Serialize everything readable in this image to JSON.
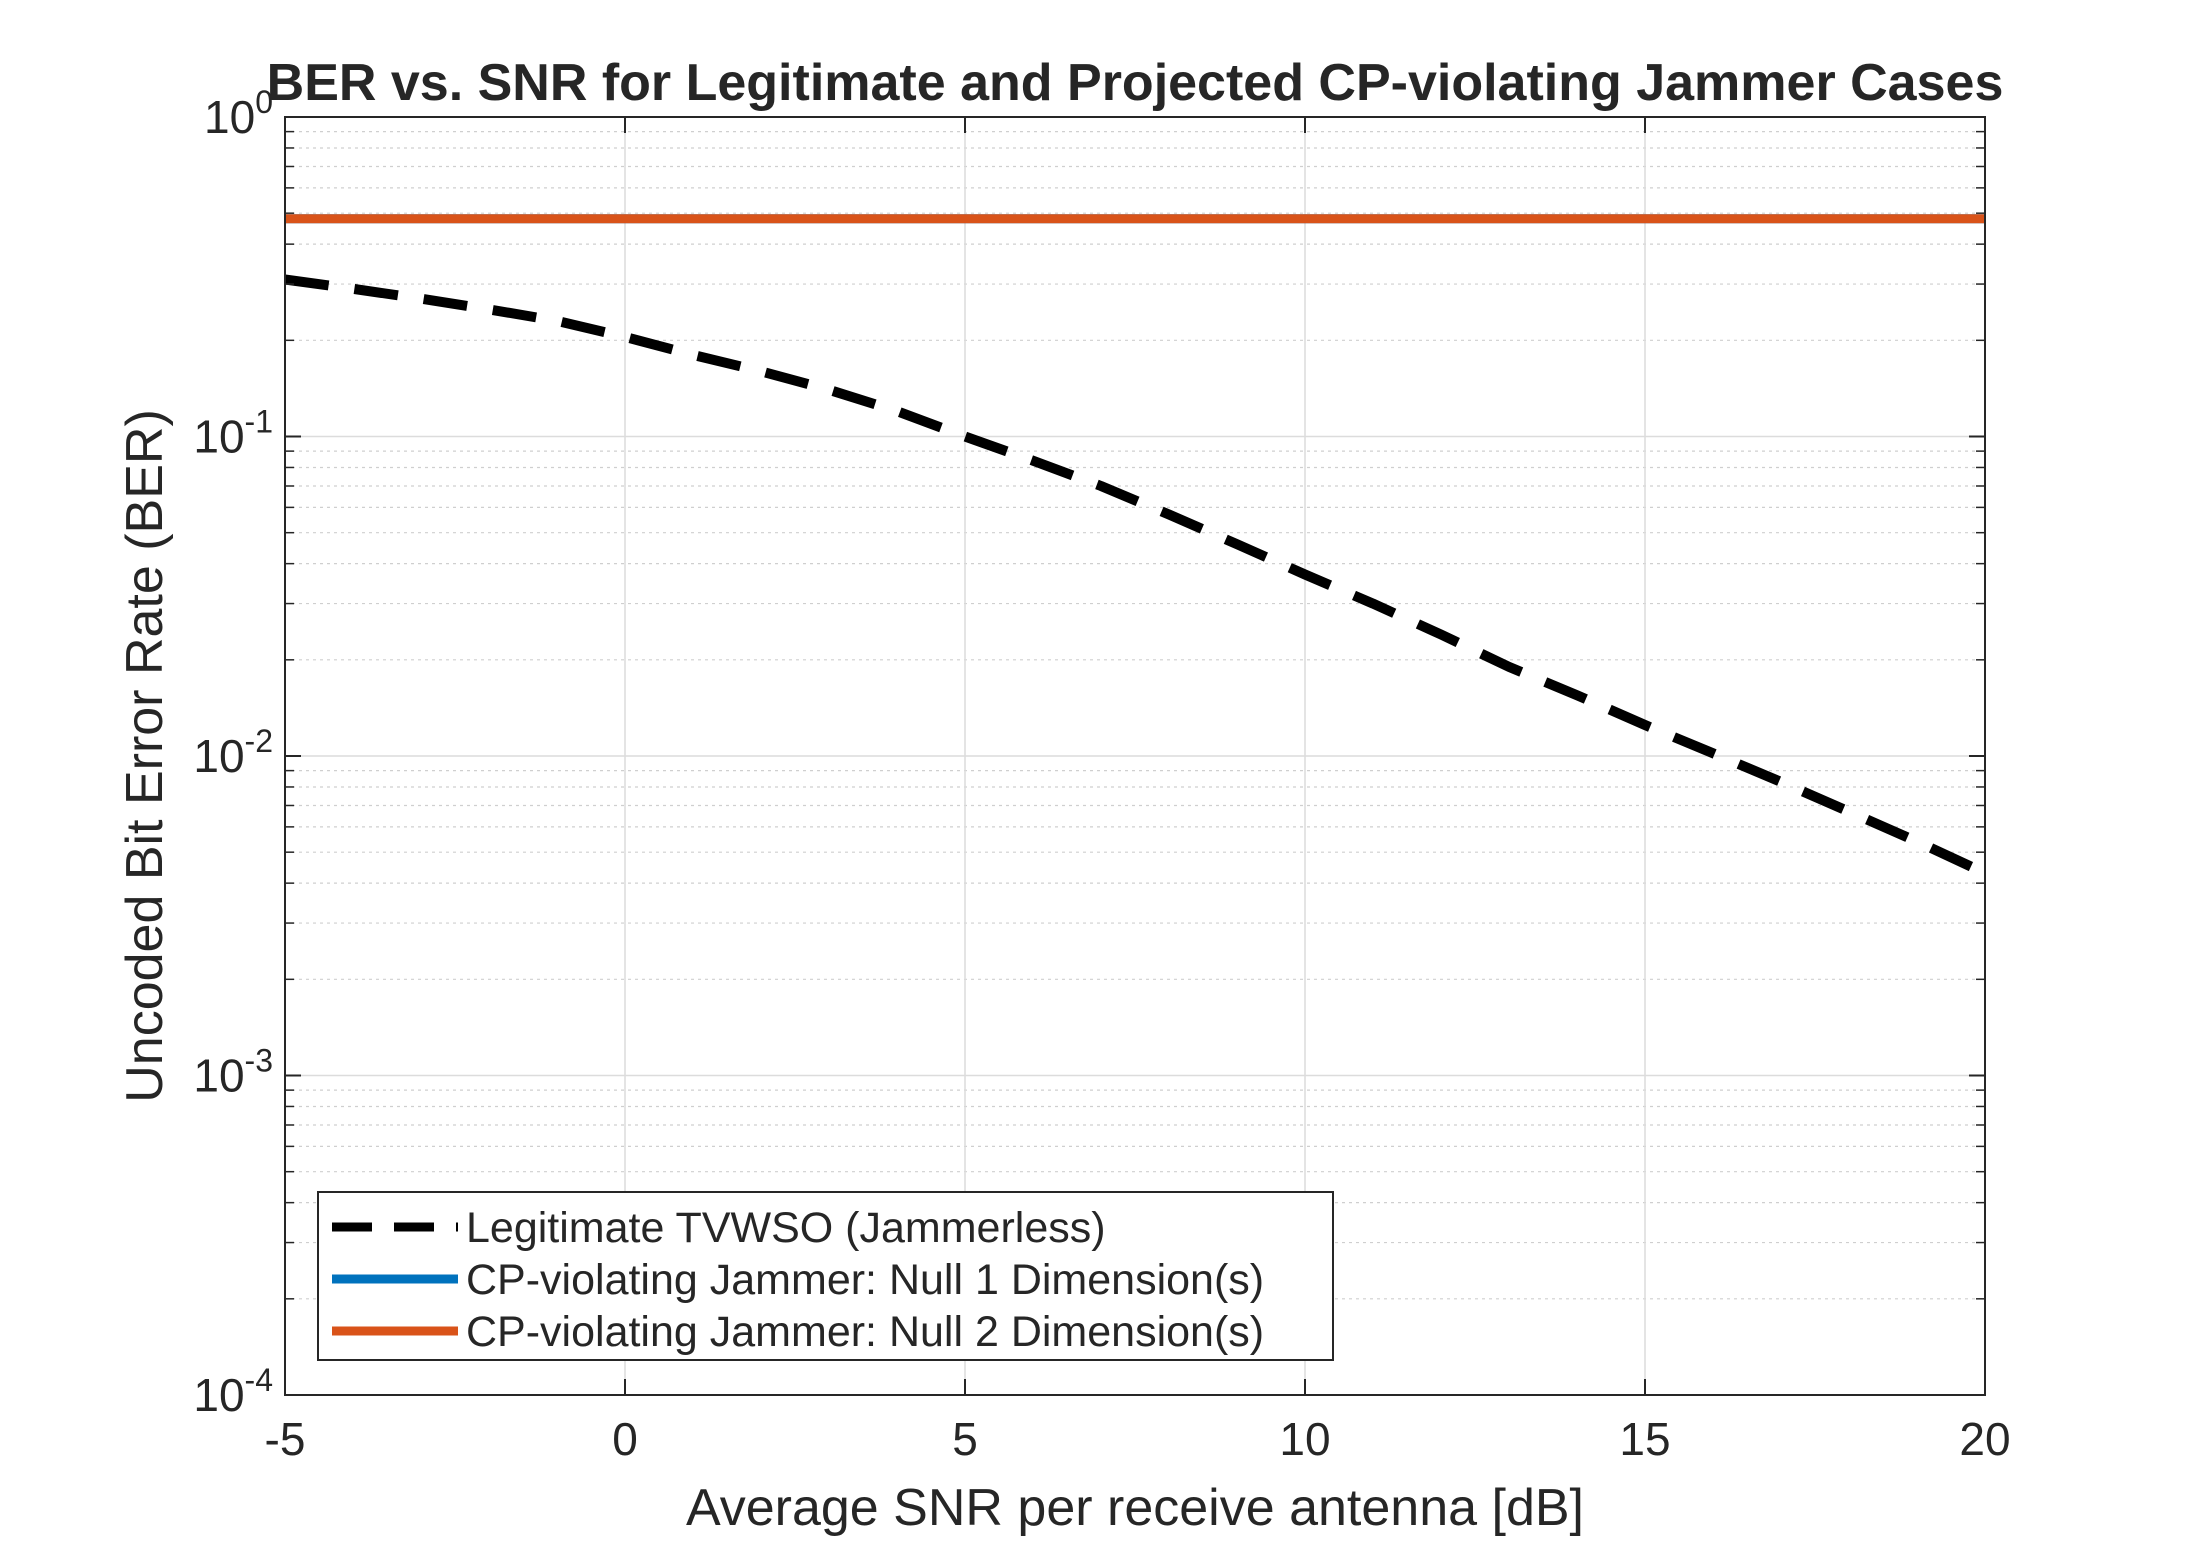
{
  "chart_data": {
    "type": "line",
    "title": "BER vs. SNR for Legitimate and Projected CP-violating Jammer Cases",
    "xlabel": "Average SNR per receive antenna [dB]",
    "ylabel": "Uncoded Bit Error Rate (BER)",
    "xlim": [
      -5,
      20
    ],
    "ylim": [
      0.0001,
      1
    ],
    "yscale": "log",
    "grid": true,
    "legend_position": "bottom-left",
    "x_ticks": [
      "-5",
      "0",
      "5",
      "10",
      "15",
      "20"
    ],
    "y_ticks": [
      {
        "base": "10",
        "exp": "-4"
      },
      {
        "base": "10",
        "exp": "-3"
      },
      {
        "base": "10",
        "exp": "-2"
      },
      {
        "base": "10",
        "exp": "-1"
      },
      {
        "base": "10",
        "exp": "0"
      }
    ],
    "series": [
      {
        "name": "Legitimate TVWSO (Jammerless)",
        "color": "#000000",
        "style": "dashed",
        "x": [
          -5,
          -4,
          -3,
          -2,
          -1,
          0,
          1,
          2,
          3,
          4,
          5,
          6,
          7,
          8,
          9,
          10,
          11,
          12,
          13,
          14,
          15,
          16,
          17,
          18,
          19,
          20
        ],
        "y": [
          0.31,
          0.29,
          0.27,
          0.25,
          0.23,
          0.205,
          0.18,
          0.16,
          0.14,
          0.12,
          0.1,
          0.084,
          0.07,
          0.057,
          0.046,
          0.037,
          0.03,
          0.024,
          0.019,
          0.0155,
          0.0125,
          0.0102,
          0.0083,
          0.0067,
          0.0054,
          0.0043
        ]
      },
      {
        "name": "CP-violating Jammer: Null 1 Dimension(s)",
        "color": "#0072BD",
        "style": "solid",
        "x": [
          -5,
          0,
          5,
          10,
          15,
          20
        ],
        "y": [
          0.48,
          0.48,
          0.48,
          0.48,
          0.48,
          0.48
        ]
      },
      {
        "name": "CP-violating Jammer: Null 2 Dimension(s)",
        "color": "#D95319",
        "style": "solid",
        "x": [
          -5,
          0,
          5,
          10,
          15,
          20
        ],
        "y": [
          0.48,
          0.48,
          0.48,
          0.48,
          0.48,
          0.48
        ]
      }
    ]
  }
}
